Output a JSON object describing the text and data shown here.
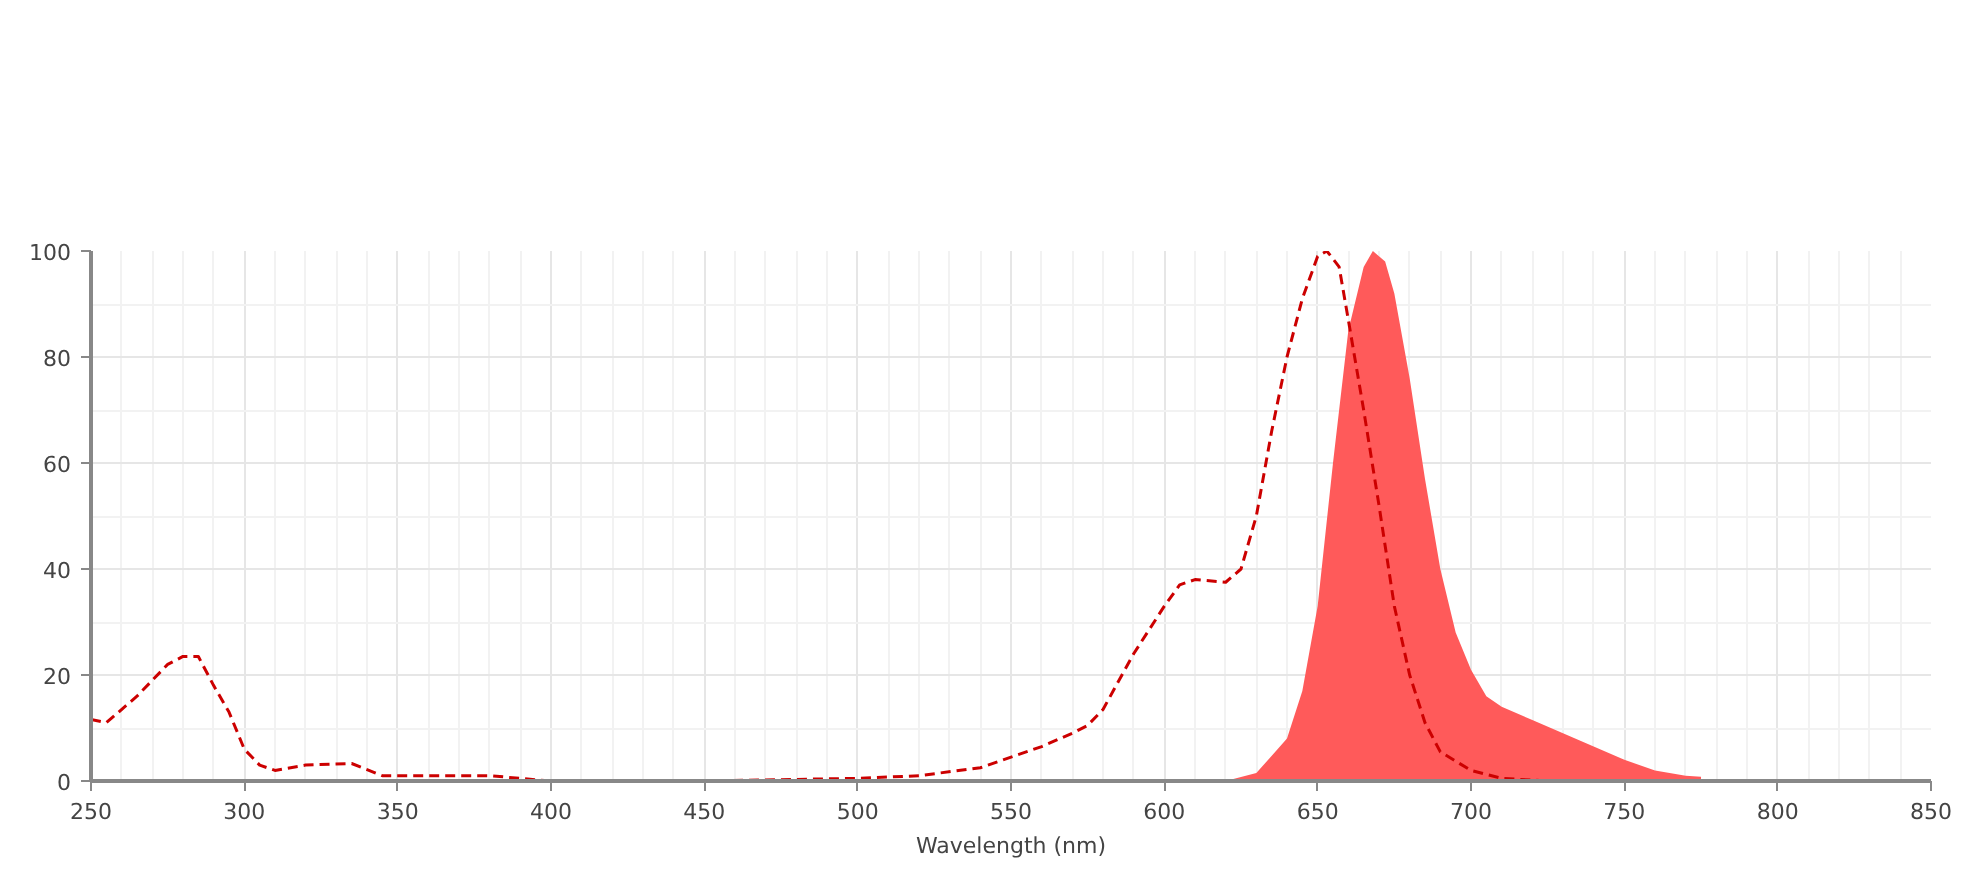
{
  "chart_data": {
    "type": "line",
    "xlabel": "Wavelength (nm)",
    "xlim": [
      250,
      850
    ],
    "ylim": [
      0,
      100
    ],
    "xticks": [
      250,
      300,
      350,
      400,
      450,
      500,
      550,
      600,
      650,
      700,
      750,
      800,
      850
    ],
    "yticks": [
      0,
      20,
      40,
      60,
      80,
      100
    ],
    "grid": true,
    "marker": "none",
    "series": [
      {
        "line_style": "dashed",
        "color": "#cc0000",
        "x": [
          250,
          255,
          265,
          275,
          280,
          285,
          290,
          295,
          300,
          305,
          310,
          320,
          335,
          345,
          360,
          380,
          400,
          450,
          500,
          520,
          540,
          550,
          560,
          570,
          575,
          580,
          590,
          600,
          605,
          610,
          620,
          625,
          630,
          635,
          640,
          645,
          650,
          653,
          657,
          660,
          665,
          670,
          675,
          680,
          685,
          690,
          700,
          710,
          725
        ],
        "values": [
          11.6,
          11,
          16,
          22,
          23.5,
          23.5,
          18,
          13,
          6,
          3,
          2,
          3,
          3.3,
          1,
          1,
          1,
          0,
          0,
          0.5,
          1,
          2.5,
          4.5,
          6.5,
          9,
          10.5,
          13.5,
          24,
          33,
          37,
          38,
          37.5,
          40,
          50,
          66,
          80,
          91,
          99,
          100,
          97,
          87,
          70,
          52,
          33,
          20,
          11,
          5.5,
          2,
          0.5,
          0
        ]
      },
      {
        "type": "area",
        "color": "#ff5a5a",
        "x": [
          620,
          630,
          640,
          645,
          650,
          655,
          660,
          665,
          668,
          672,
          675,
          680,
          685,
          690,
          695,
          700,
          705,
          710,
          720,
          730,
          740,
          750,
          760,
          770,
          775
        ],
        "values": [
          0,
          1.5,
          8,
          17,
          33,
          60,
          85,
          97,
          100,
          98,
          92,
          76,
          57,
          40,
          28,
          21,
          16,
          14,
          11.5,
          9,
          6.5,
          4,
          2,
          1,
          0.8
        ]
      }
    ]
  }
}
